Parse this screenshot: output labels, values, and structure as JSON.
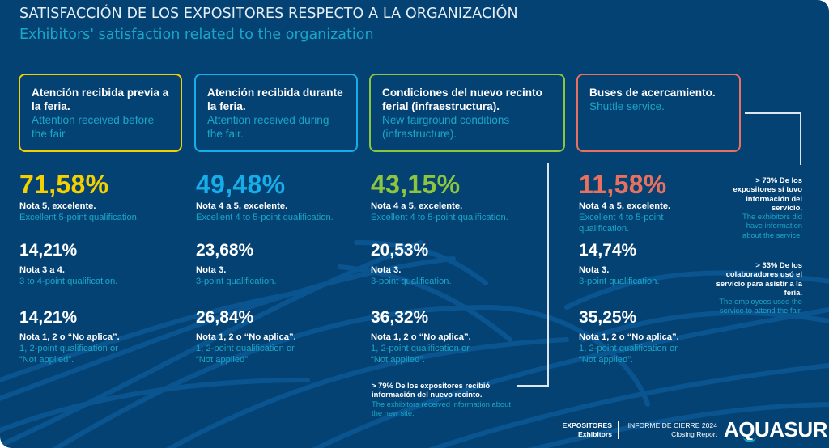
{
  "header": {
    "title_es": "SATISFACCIÓN DE LOS EXPOSITORES RESPECTO A LA ORGANIZACIÓN",
    "title_en": "Exhibitors' satisfaction related to the organization"
  },
  "colors": {
    "background": "#054274",
    "yellow": "#f5d000",
    "blue": "#16aee8",
    "green": "#8cc63f",
    "coral": "#e8705f",
    "teal_text": "#1aa7c6"
  },
  "categories": [
    {
      "title_es": "Atención recibida previa a la feria.",
      "title_en": "Attention received before the fair.",
      "stats": [
        {
          "value": "71,58%",
          "label_es": "Nota 5, excelente.",
          "label_en": "Excellent 5-point qualification."
        },
        {
          "value": "14,21%",
          "label_es": "Nota 3 a 4.",
          "label_en": "3 to 4-point qualification."
        },
        {
          "value": "14,21%",
          "label_es": "Nota 1, 2 o “No aplica”.",
          "label_en": "1, 2-point qualification or “Not applied”."
        }
      ]
    },
    {
      "title_es": "Atención recibida durante la feria.",
      "title_en": "Attention received during the fair.",
      "stats": [
        {
          "value": "49,48%",
          "label_es": "Nota 4 a 5, excelente.",
          "label_en": "Excellent 4 to 5-point qualification."
        },
        {
          "value": "23,68%",
          "label_es": "Nota 3.",
          "label_en": "3-point qualification."
        },
        {
          "value": "26,84%",
          "label_es": "Nota 1, 2 o “No aplica”.",
          "label_en": "1, 2-point qualification or “Not applied”."
        }
      ]
    },
    {
      "title_es": "Condiciones del nuevo recinto ferial (infraestructura).",
      "title_en": "New fairground conditions (infrastructure).",
      "stats": [
        {
          "value": "43,15%",
          "label_es": "Nota 4 a 5, excelente.",
          "label_en": "Excellent 4 to 5-point qualification."
        },
        {
          "value": "20,53%",
          "label_es": "Nota 3.",
          "label_en": "3-point qualification."
        },
        {
          "value": "36,32%",
          "label_es": "Nota 1, 2 o “No aplica”.",
          "label_en": "1, 2-point qualification or “Not applied”."
        }
      ],
      "note": {
        "es": "> 79% De los expositores recibió información del nuevo recinto.",
        "en": "The exhibitors received information about the new site."
      }
    },
    {
      "title_es": "Buses de acercamiento.",
      "title_en": "Shuttle service.",
      "stats": [
        {
          "value": "11,58%",
          "label_es": "Nota 4 a 5, excelente.",
          "label_en": "Excellent 4 to 5-point qualification."
        },
        {
          "value": "14,74%",
          "label_es": "Nota 3.",
          "label_en": "3-point qualification."
        },
        {
          "value": "35,25%",
          "label_es": "Nota 1, 2 o “No aplica”.",
          "label_en": "1, 2-point qualification or “Not applied”."
        }
      ],
      "notes": [
        {
          "es": "> 73% De los expositores sí tuvo información del servicio.",
          "en": "The exhibitors did have information about the service."
        },
        {
          "es": "> 33% De los colaboradores usó el servicio para asistir a la feria.",
          "en": "The employees used the service to attend the fair."
        }
      ]
    }
  ],
  "footer": {
    "section_es": "EXPOSITORES",
    "section_en": "Exhibitors",
    "report_es": "INFORME DE CIERRE 2024",
    "report_en": "Closing Report",
    "logo": "AQUASUR"
  }
}
